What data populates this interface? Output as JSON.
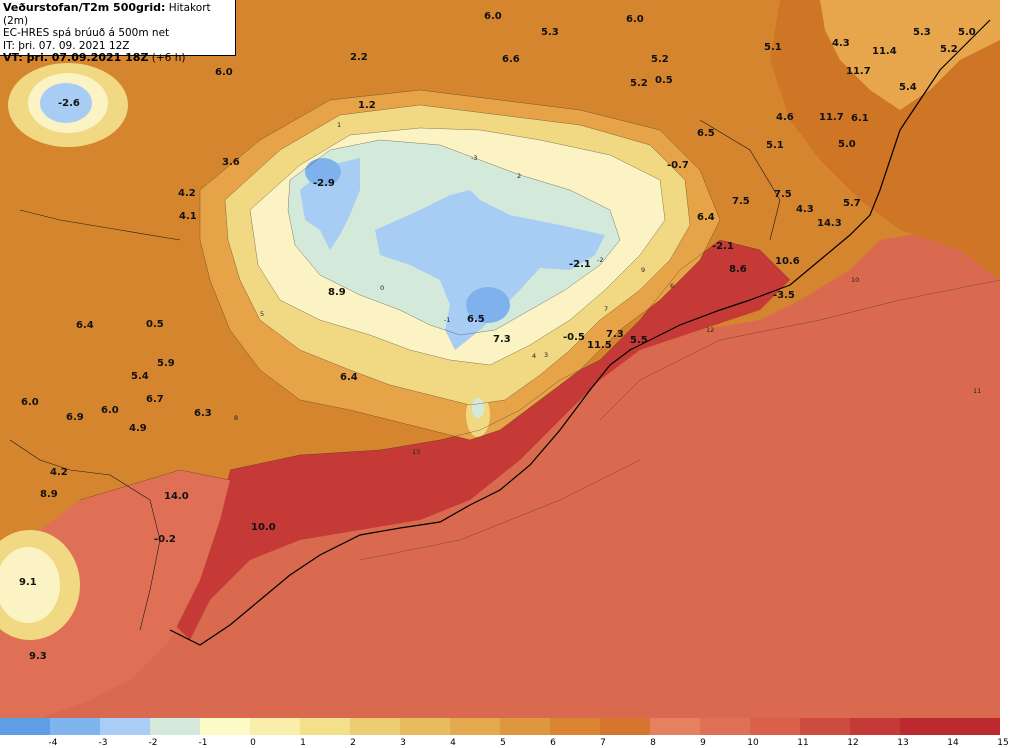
{
  "header": {
    "title": "Veðurstofan/T2m 500grid:",
    "subtitle": "Hitakort (2m)",
    "model": "EC-HRES spá brúuð á 500m net",
    "init_time": "IT: þri. 07. 09. 2021 12Z",
    "valid_prefix": "VT: þri. 07.09.2021 18Z",
    "valid_suffix": "(+6 h)"
  },
  "colors": {
    "sea": "#d96a4f",
    "warm_band": "#c83a33",
    "orange": "#d9822f",
    "light_orange": "#e9a948",
    "yellow": "#f6dd8a",
    "pale": "#fbf2c0",
    "ice_green": "#d6ecd6",
    "ice_blue": "#a8cdf4",
    "deep_blue": "#7fb2ec"
  },
  "legend": {
    "ticks": [
      "-4",
      "-3",
      "-2",
      "-1",
      "0",
      "1",
      "2",
      "3",
      "4",
      "5",
      "6",
      "7",
      "8",
      "9",
      "10",
      "11",
      "12",
      "13",
      "14",
      "15"
    ],
    "colors": [
      "#5d9ee4",
      "#7fb4ee",
      "#a9cdf6",
      "#d4e9dc",
      "#fcfbc6",
      "#f9efaa",
      "#f2e08b",
      "#eccd72",
      "#e8bb5f",
      "#e4a84f",
      "#df9640",
      "#da8434",
      "#d6752e",
      "#e58060",
      "#e07055",
      "#da604c",
      "#cf4c40",
      "#c53a36",
      "#bc2a30"
    ]
  },
  "map_labels": [
    {
      "t": "-2.6"
    },
    {
      "t": "6.0"
    },
    {
      "t": "2.2"
    },
    {
      "t": "6.0"
    },
    {
      "t": "6.6"
    },
    {
      "t": "5.3"
    },
    {
      "t": "6.0"
    },
    {
      "t": "5.1"
    },
    {
      "t": "4.3"
    },
    {
      "t": "5.3"
    },
    {
      "t": "5.0"
    },
    {
      "t": "5.2"
    },
    {
      "t": "1.2"
    },
    {
      "t": "5.2"
    },
    {
      "t": "0.5"
    },
    {
      "t": "5.2"
    },
    {
      "t": "11.4"
    },
    {
      "t": "11.7"
    },
    {
      "t": "5.4"
    },
    {
      "t": "3.6"
    },
    {
      "t": "4.6"
    },
    {
      "t": "11.7"
    },
    {
      "t": "6.1"
    },
    {
      "t": "-2.9"
    },
    {
      "t": "4.2"
    },
    {
      "t": "4.1"
    },
    {
      "t": "-0.7"
    },
    {
      "t": "6.5"
    },
    {
      "t": "5.1"
    },
    {
      "t": "5.0"
    },
    {
      "t": "7.5"
    },
    {
      "t": "7.5"
    },
    {
      "t": "4.3"
    },
    {
      "t": "5.7"
    },
    {
      "t": "6.4"
    },
    {
      "t": "14.3"
    },
    {
      "t": "-2.1"
    },
    {
      "t": "-2.1"
    },
    {
      "t": "8.9"
    },
    {
      "t": "10.6"
    },
    {
      "t": "8.6"
    },
    {
      "t": "-3.5"
    },
    {
      "t": "6.5"
    },
    {
      "t": "6.4"
    },
    {
      "t": "0.5"
    },
    {
      "t": "-0.5"
    },
    {
      "t": "7.3"
    },
    {
      "t": "7.3"
    },
    {
      "t": "11.5"
    },
    {
      "t": "5.5"
    },
    {
      "t": "5.9"
    },
    {
      "t": "5.4"
    },
    {
      "t": "6.4"
    },
    {
      "t": "6.0"
    },
    {
      "t": "6.7"
    },
    {
      "t": "6.0"
    },
    {
      "t": "6.9"
    },
    {
      "t": "6.3"
    },
    {
      "t": "4.9"
    },
    {
      "t": "4.2"
    },
    {
      "t": "8.9"
    },
    {
      "t": "14.0"
    },
    {
      "t": "10.0"
    },
    {
      "t": "-0.2"
    },
    {
      "t": "9.1"
    },
    {
      "t": "9.3"
    }
  ],
  "contour_labels": [
    "0",
    "1",
    "2",
    "3",
    "4",
    "5",
    "6",
    "7",
    "8",
    "9",
    "10",
    "11",
    "12",
    "13",
    "-1",
    "-2",
    "-3"
  ]
}
